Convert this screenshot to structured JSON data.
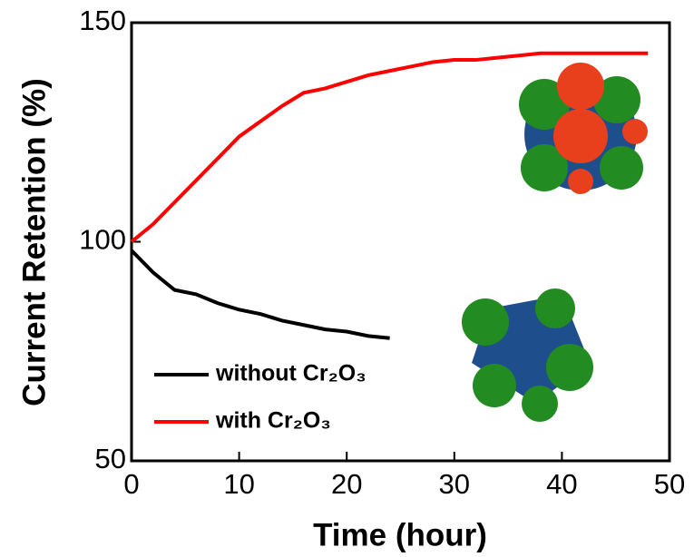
{
  "chart_data": {
    "type": "line",
    "xlabel": "Time (hour)",
    "ylabel": "Current Retention (%)",
    "x": [
      0,
      2,
      4,
      6,
      8,
      10,
      12,
      14,
      16,
      18,
      20,
      22,
      24,
      26,
      28,
      30,
      32,
      34,
      36,
      38,
      40,
      42,
      44,
      46,
      48
    ],
    "series": [
      {
        "name": "without Cr₂O₃",
        "color": "#000000",
        "values": [
          98,
          93,
          89,
          88,
          86,
          84.5,
          83.5,
          82,
          81,
          80,
          79.5,
          78.5,
          78,
          null,
          null,
          null,
          null,
          null,
          null,
          null,
          null,
          null,
          null,
          null,
          null
        ]
      },
      {
        "name": "with Cr₂O₃",
        "color": "#ff0000",
        "values": [
          100,
          104,
          109,
          114,
          119,
          124,
          127.5,
          131,
          134,
          135,
          136.5,
          138,
          139,
          140,
          141,
          141.5,
          141.5,
          142,
          142.5,
          143,
          143,
          143,
          143,
          143,
          143
        ]
      }
    ],
    "xlim": [
      0,
      50
    ],
    "xticks": [
      0,
      10,
      20,
      30,
      40,
      50
    ],
    "ylim": [
      50,
      150
    ],
    "yticks": [
      50,
      100,
      150
    ],
    "legend": "lower left"
  }
}
